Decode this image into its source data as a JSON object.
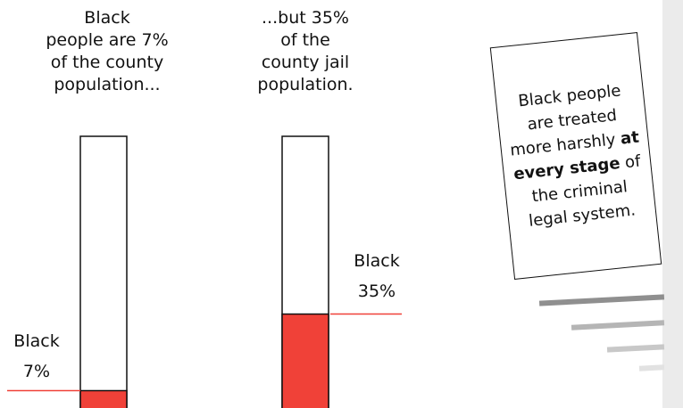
{
  "chart_data": [
    {
      "type": "bar",
      "categories": [
        "County population",
        "County jail population"
      ],
      "series": [
        {
          "name": "Black",
          "values": [
            7,
            35
          ]
        }
      ],
      "ylim": [
        0,
        100
      ],
      "heading_lines": [
        [
          "Black",
          "people are 7%",
          "of the county",
          "population..."
        ],
        [
          "...but 35%",
          "of the",
          "county jail",
          "population."
        ]
      ],
      "value_labels": [
        {
          "line1": "Black",
          "line2": "7%"
        },
        {
          "line1": "Black",
          "line2": "35%"
        }
      ]
    }
  ],
  "callout": {
    "text_before": "Black people are treated more harshly ",
    "bold": "at every stage",
    "text_after": " of the criminal legal system."
  },
  "colors": {
    "fill": "#f04138",
    "empty": "#ffffff",
    "outline": "#111111",
    "panel": "#ebebeb",
    "stripes": [
      "#8f8f8f",
      "#b5b5b5",
      "#c8c8c8",
      "#e2e2e2"
    ]
  }
}
